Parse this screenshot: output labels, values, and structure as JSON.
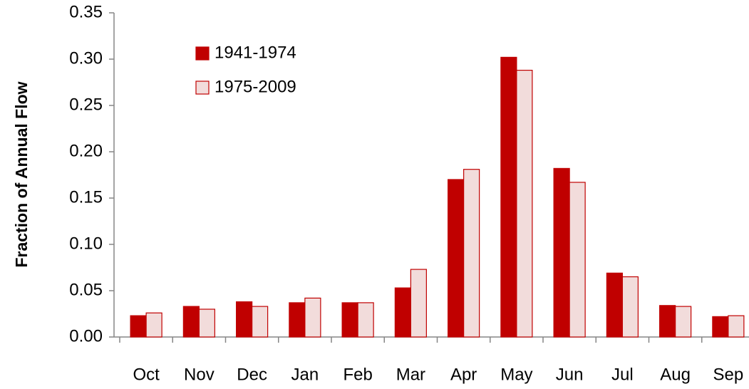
{
  "chart_data": {
    "type": "bar",
    "y_label": "Fraction of Annual Flow",
    "categories": [
      "Oct",
      "Nov",
      "Dec",
      "Jan",
      "Feb",
      "Mar",
      "Apr",
      "May",
      "Jun",
      "Jul",
      "Aug",
      "Sep"
    ],
    "series": [
      {
        "name": "1941-1974",
        "color": "#c00000",
        "edgecolor": "#c00000",
        "values": [
          0.023,
          0.033,
          0.038,
          0.037,
          0.037,
          0.053,
          0.17,
          0.302,
          0.182,
          0.069,
          0.034,
          0.022
        ]
      },
      {
        "name": "1975-2009",
        "color": "#f2dcdb",
        "edgecolor": "#c00000",
        "values": [
          0.026,
          0.03,
          0.033,
          0.042,
          0.037,
          0.073,
          0.181,
          0.288,
          0.167,
          0.065,
          0.033,
          0.023
        ]
      }
    ],
    "ylim": [
      0,
      0.35
    ],
    "yticks": [
      {
        "value": 0,
        "label": "0.00"
      },
      0.05,
      {
        "value": 0.1,
        "label": "0.10"
      },
      0.15,
      {
        "value": 0.2,
        "label": "0.20"
      },
      0.25,
      {
        "value": 0.3,
        "label": "0.30"
      },
      0.35
    ],
    "legend": "upper left",
    "grid": false
  }
}
